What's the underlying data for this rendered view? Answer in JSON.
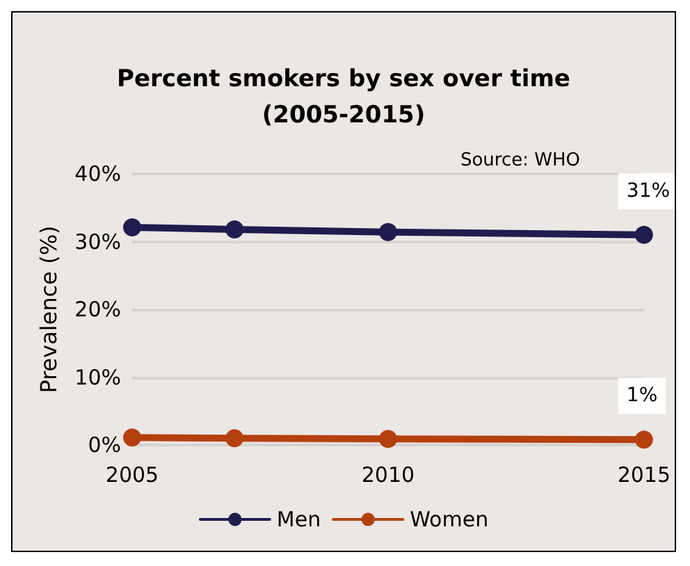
{
  "chart_data": {
    "type": "line",
    "title": "Percent smokers by sex over time\n(2005-2015)",
    "ylabel": "Prevalence (%)",
    "annotations": [
      "Source: WHO"
    ],
    "x": [
      2005,
      2007,
      2010,
      2015
    ],
    "xlim": [
      2005,
      2015
    ],
    "xticks": [
      2005,
      2010,
      2015
    ],
    "ylim": [
      0,
      40
    ],
    "yticks": [
      {
        "value": 0,
        "label": "0%"
      },
      {
        "value": 10,
        "label": "10%"
      },
      {
        "value": 20,
        "label": "20%"
      },
      {
        "value": 30,
        "label": "30%"
      },
      {
        "value": 40,
        "label": "40%"
      }
    ],
    "series": [
      {
        "name": "Men",
        "color": "#1f1c4e",
        "values": [
          32.1,
          31.8,
          31.4,
          31.0
        ],
        "value_labels": [
          null,
          null,
          null,
          "31%"
        ]
      },
      {
        "name": "Women",
        "color": "#b5400f",
        "values": [
          1.1,
          1.0,
          0.9,
          0.8
        ],
        "value_labels": [
          null,
          null,
          null,
          "1%"
        ]
      }
    ],
    "grid": "y",
    "legend": "bottom",
    "marker": "circle",
    "line_style": "solid"
  }
}
